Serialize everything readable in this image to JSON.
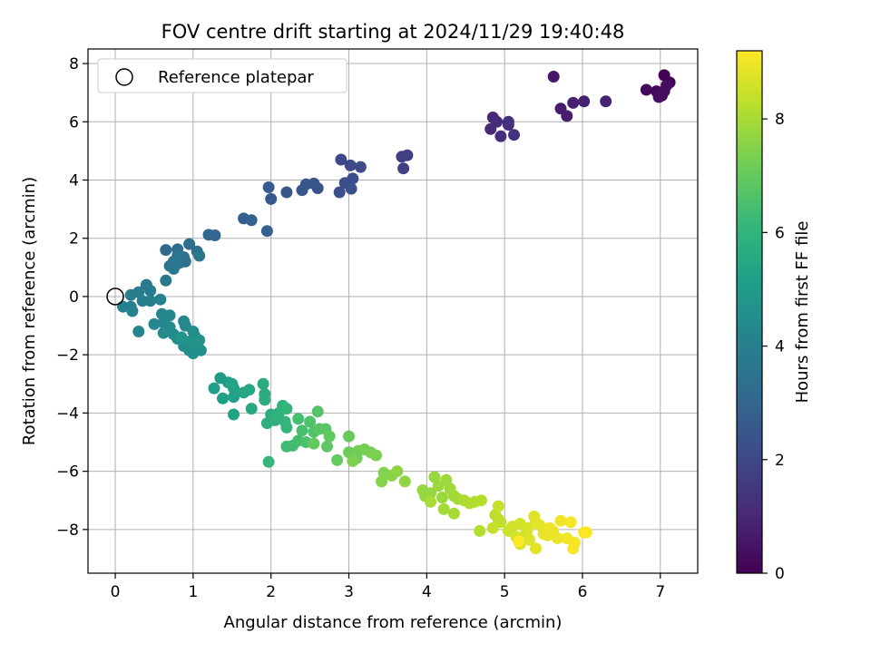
{
  "chart_data": {
    "type": "scatter",
    "title": "FOV centre drift starting at 2024/11/29 19:40:48",
    "xlabel": "Angular distance from reference (arcmin)",
    "ylabel": "Rotation from reference (arcmin)",
    "xlim": [
      -0.35,
      7.48
    ],
    "ylim": [
      -9.5,
      8.5
    ],
    "xticks": [
      0,
      1,
      2,
      3,
      4,
      5,
      6,
      7
    ],
    "yticks": [
      -8,
      -6,
      -4,
      -2,
      0,
      2,
      4,
      6,
      8
    ],
    "grid": true,
    "legend": {
      "placement": "top-left",
      "label": "Reference platepar"
    },
    "reference_point": {
      "x": 0,
      "y": 0
    },
    "colorbar": {
      "label": "Hours from first FF file",
      "colormap": "viridis",
      "range": [
        0,
        9.2
      ],
      "ticks": [
        0,
        2,
        4,
        6,
        8
      ]
    },
    "series": [
      {
        "points": [
          [
            7.05,
            7.6,
            0.05
          ],
          [
            7.12,
            7.35,
            0.1
          ],
          [
            6.95,
            7.05,
            0.15
          ],
          [
            6.82,
            7.1,
            0.2
          ],
          [
            7.02,
            6.9,
            0.25
          ],
          [
            7.08,
            7.25,
            0.3
          ],
          [
            7.05,
            7.05,
            0.35
          ],
          [
            6.98,
            6.85,
            0.4
          ],
          [
            5.63,
            7.55,
            0.6
          ],
          [
            5.72,
            6.45,
            0.7
          ],
          [
            5.8,
            6.2,
            0.75
          ],
          [
            5.88,
            6.65,
            0.8
          ],
          [
            6.02,
            6.7,
            0.85
          ],
          [
            6.3,
            6.7,
            0.9
          ],
          [
            4.85,
            6.15,
            1.05
          ],
          [
            4.9,
            6.0,
            1.1
          ],
          [
            4.82,
            5.75,
            1.15
          ],
          [
            4.95,
            5.5,
            1.2
          ],
          [
            5.05,
            5.9,
            1.25
          ],
          [
            5.12,
            5.55,
            1.3
          ],
          [
            5.05,
            6.0,
            1.35
          ],
          [
            3.75,
            4.85,
            1.7
          ],
          [
            3.68,
            4.8,
            1.75
          ],
          [
            3.7,
            4.4,
            1.8
          ],
          [
            2.9,
            4.7,
            2.0
          ],
          [
            3.02,
            4.5,
            2.05
          ],
          [
            3.15,
            4.45,
            2.1
          ],
          [
            2.95,
            3.9,
            2.15
          ],
          [
            3.05,
            4.05,
            2.2
          ],
          [
            2.88,
            3.58,
            2.25
          ],
          [
            3.03,
            3.7,
            2.3
          ],
          [
            2.6,
            3.72,
            2.35
          ],
          [
            2.55,
            3.88,
            2.4
          ],
          [
            2.45,
            3.85,
            2.45
          ],
          [
            2.4,
            3.65,
            2.5
          ],
          [
            2.2,
            3.58,
            2.55
          ],
          [
            2.0,
            3.35,
            2.6
          ],
          [
            1.97,
            3.75,
            2.65
          ],
          [
            1.65,
            2.68,
            2.8
          ],
          [
            1.75,
            2.62,
            2.85
          ],
          [
            1.95,
            2.25,
            2.9
          ],
          [
            1.28,
            2.1,
            3.0
          ],
          [
            1.2,
            2.12,
            3.05
          ],
          [
            0.65,
            1.6,
            3.2
          ],
          [
            0.8,
            1.62,
            3.25
          ],
          [
            0.95,
            1.8,
            3.3
          ],
          [
            1.05,
            1.55,
            3.35
          ],
          [
            0.88,
            1.35,
            3.4
          ],
          [
            0.9,
            1.2,
            3.45
          ],
          [
            0.82,
            1.15,
            3.5
          ],
          [
            0.75,
            1.2,
            3.55
          ],
          [
            0.7,
            1.05,
            3.6
          ],
          [
            0.8,
            1.4,
            3.62
          ],
          [
            1.08,
            1.4,
            3.65
          ],
          [
            0.75,
            0.95,
            3.68
          ],
          [
            0.65,
            0.55,
            3.7
          ],
          [
            0.4,
            0.4,
            3.8
          ],
          [
            0.45,
            0.2,
            3.85
          ],
          [
            0.3,
            0.15,
            3.88
          ],
          [
            0.2,
            0.05,
            3.9
          ],
          [
            0.45,
            -0.15,
            3.95
          ],
          [
            0.35,
            -0.15,
            3.98
          ],
          [
            0.2,
            -0.35,
            4.0
          ],
          [
            0.1,
            -0.35,
            4.05
          ],
          [
            0.22,
            -0.5,
            4.08
          ],
          [
            0.58,
            -0.1,
            4.1
          ],
          [
            0.3,
            -1.2,
            4.15
          ],
          [
            0.6,
            -0.6,
            4.2
          ],
          [
            0.5,
            -0.95,
            4.22
          ],
          [
            0.7,
            -0.65,
            4.25
          ],
          [
            0.62,
            -0.9,
            4.28
          ],
          [
            0.88,
            -0.85,
            4.3
          ],
          [
            0.9,
            -1.0,
            4.32
          ],
          [
            0.7,
            -1.05,
            4.35
          ],
          [
            0.62,
            -1.25,
            4.38
          ],
          [
            0.75,
            -1.3,
            4.4
          ],
          [
            0.8,
            -1.45,
            4.42
          ],
          [
            0.92,
            -1.55,
            4.45
          ],
          [
            1.0,
            -1.2,
            4.48
          ],
          [
            1.02,
            -1.35,
            4.5
          ],
          [
            0.88,
            -1.7,
            4.52
          ],
          [
            0.95,
            -1.85,
            4.55
          ],
          [
            1.05,
            -1.65,
            4.58
          ],
          [
            1.1,
            -1.85,
            4.6
          ],
          [
            1.0,
            -1.95,
            4.62
          ],
          [
            1.05,
            -1.75,
            4.65
          ],
          [
            0.95,
            -1.55,
            4.7
          ],
          [
            1.08,
            -1.5,
            4.72
          ],
          [
            0.85,
            -1.4,
            4.75
          ],
          [
            1.35,
            -2.8,
            5.0
          ],
          [
            1.45,
            -2.95,
            5.05
          ],
          [
            1.38,
            -3.5,
            5.1
          ],
          [
            1.27,
            -3.15,
            5.15
          ],
          [
            1.52,
            -3.15,
            5.2
          ],
          [
            1.52,
            -3.45,
            5.25
          ],
          [
            1.52,
            -4.05,
            5.3
          ],
          [
            1.5,
            -3.0,
            5.35
          ],
          [
            1.65,
            -3.3,
            5.4
          ],
          [
            1.72,
            -3.2,
            5.45
          ],
          [
            1.75,
            -3.85,
            5.5
          ],
          [
            1.9,
            -3.0,
            5.6
          ],
          [
            1.92,
            -3.35,
            5.65
          ],
          [
            1.92,
            -3.55,
            5.7
          ],
          [
            2.0,
            -4.05,
            5.75
          ],
          [
            1.95,
            -4.35,
            5.8
          ],
          [
            2.05,
            -4.25,
            5.85
          ],
          [
            2.1,
            -4.0,
            5.9
          ],
          [
            2.15,
            -3.75,
            5.95
          ],
          [
            2.2,
            -3.85,
            6.0
          ],
          [
            2.18,
            -4.3,
            6.05
          ],
          [
            2.2,
            -4.5,
            6.08
          ],
          [
            1.97,
            -5.68,
            6.1
          ],
          [
            2.2,
            -5.15,
            6.3
          ],
          [
            2.28,
            -5.12,
            6.35
          ],
          [
            2.35,
            -4.95,
            6.4
          ],
          [
            2.35,
            -4.2,
            6.45
          ],
          [
            2.4,
            -4.6,
            6.5
          ],
          [
            2.45,
            -5.0,
            6.55
          ],
          [
            2.5,
            -4.3,
            6.6
          ],
          [
            2.55,
            -4.65,
            6.65
          ],
          [
            2.6,
            -3.95,
            6.7
          ],
          [
            2.62,
            -4.55,
            6.75
          ],
          [
            2.7,
            -4.55,
            6.8
          ],
          [
            2.72,
            -5.15,
            6.85
          ],
          [
            2.75,
            -4.8,
            6.9
          ],
          [
            2.55,
            -5.05,
            6.95
          ],
          [
            2.85,
            -5.62,
            7.0
          ],
          [
            3.0,
            -4.8,
            7.05
          ],
          [
            3.0,
            -5.35,
            7.1
          ],
          [
            3.1,
            -5.55,
            7.15
          ],
          [
            3.12,
            -5.3,
            7.2
          ],
          [
            3.2,
            -5.25,
            7.25
          ],
          [
            3.28,
            -5.35,
            7.3
          ],
          [
            3.35,
            -5.45,
            7.35
          ],
          [
            3.05,
            -5.65,
            7.4
          ],
          [
            3.45,
            -6.05,
            7.45
          ],
          [
            3.42,
            -6.35,
            7.5
          ],
          [
            3.55,
            -6.15,
            7.55
          ],
          [
            3.62,
            -6.0,
            7.6
          ],
          [
            3.72,
            -6.35,
            7.65
          ],
          [
            3.95,
            -6.65,
            7.7
          ],
          [
            3.98,
            -6.85,
            7.72
          ],
          [
            4.05,
            -6.75,
            7.75
          ],
          [
            4.1,
            -6.2,
            7.78
          ],
          [
            4.15,
            -6.5,
            7.8
          ],
          [
            4.2,
            -6.9,
            7.82
          ],
          [
            4.25,
            -6.3,
            7.85
          ],
          [
            4.3,
            -6.6,
            7.88
          ],
          [
            4.35,
            -6.85,
            7.9
          ],
          [
            4.4,
            -6.95,
            7.92
          ],
          [
            4.22,
            -7.3,
            7.95
          ],
          [
            4.35,
            -7.45,
            7.98
          ],
          [
            4.05,
            -7.05,
            8.0
          ],
          [
            4.48,
            -7.0,
            8.05
          ],
          [
            4.55,
            -7.1,
            8.1
          ],
          [
            4.62,
            -7.05,
            8.12
          ],
          [
            4.68,
            -8.05,
            8.15
          ],
          [
            4.7,
            -7.0,
            8.18
          ],
          [
            4.88,
            -7.5,
            8.25
          ],
          [
            4.92,
            -7.65,
            8.3
          ],
          [
            4.95,
            -7.75,
            8.35
          ],
          [
            4.85,
            -7.95,
            8.4
          ],
          [
            4.92,
            -7.2,
            8.45
          ],
          [
            5.05,
            -8.05,
            8.5
          ],
          [
            5.1,
            -7.9,
            8.55
          ],
          [
            5.15,
            -8.25,
            8.58
          ],
          [
            5.2,
            -7.8,
            8.6
          ],
          [
            5.28,
            -8.1,
            8.65
          ],
          [
            5.3,
            -7.95,
            8.7
          ],
          [
            5.2,
            -8.5,
            8.72
          ],
          [
            5.32,
            -8.35,
            8.75
          ],
          [
            5.38,
            -7.55,
            8.78
          ],
          [
            5.4,
            -7.75,
            8.8
          ],
          [
            5.45,
            -7.85,
            8.82
          ],
          [
            5.4,
            -8.65,
            8.85
          ],
          [
            5.5,
            -8.15,
            8.88
          ],
          [
            5.55,
            -8.2,
            8.9
          ],
          [
            5.58,
            -7.95,
            8.92
          ],
          [
            5.62,
            -8.05,
            8.95
          ],
          [
            5.68,
            -8.3,
            8.98
          ],
          [
            5.72,
            -7.7,
            9.0
          ],
          [
            5.8,
            -8.3,
            9.02
          ],
          [
            5.85,
            -7.75,
            9.05
          ],
          [
            5.9,
            -8.45,
            9.08
          ],
          [
            5.88,
            -8.65,
            9.1
          ],
          [
            6.02,
            -8.1,
            9.15
          ],
          [
            6.05,
            -8.1,
            9.18
          ],
          [
            5.18,
            -8.4,
            9.2
          ]
        ]
      }
    ]
  }
}
